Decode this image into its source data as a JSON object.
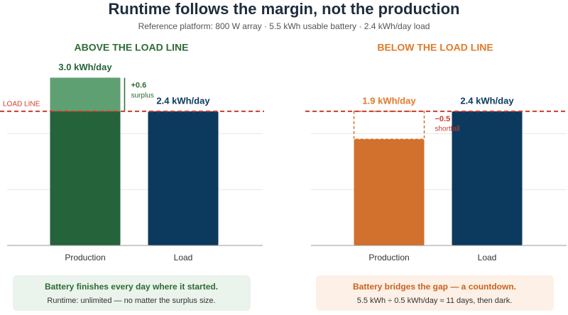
{
  "title": "Runtime follows the margin, not the production",
  "subtitle": "Reference platform: 800 W array · 5.5 kWh usable battery · 2.4 kWh/day load",
  "chart_data": [
    {
      "type": "bar",
      "title": "ABOVE THE LOAD LINE",
      "title_color": "#2e6b35",
      "categories": [
        "Production",
        "Load"
      ],
      "values": [
        3.0,
        2.4
      ],
      "value_labels": [
        "3.0 kWh/day",
        "2.4 kWh/day"
      ],
      "colors": [
        "#25633a",
        "#0c3a5e"
      ],
      "label_colors": [
        "#25633a",
        "#0c3a5e"
      ],
      "load_line": 2.4,
      "load_line_label": "LOAD LINE",
      "gap": {
        "value": 0.6,
        "label": "+0.6",
        "note": "surplus",
        "color": "#2e6b35",
        "fill": "#5fa072"
      },
      "ylim": [
        0,
        3.3
      ],
      "yticks": [
        1,
        2
      ],
      "grid": true,
      "summary": {
        "title": "Battery finishes every day where it started.",
        "text": "Runtime: unlimited — no matter the surplus size.",
        "background": "#eaf3ec",
        "color": "#2e6b35"
      }
    },
    {
      "type": "bar",
      "title": "BELOW THE LOAD LINE",
      "title_color": "#e07a2a",
      "categories": [
        "Production",
        "Load"
      ],
      "values": [
        1.9,
        2.4
      ],
      "value_labels": [
        "1.9 kWh/day",
        "2.4 kWh/day"
      ],
      "colors": [
        "#d2702d",
        "#0c3a5e"
      ],
      "label_colors": [
        "#e07a2a",
        "#0c3a5e"
      ],
      "load_line": 2.4,
      "gap": {
        "value": -0.5,
        "label": "−0.5",
        "note": "shortfall",
        "color": "#d03a2a",
        "fill": "none"
      },
      "ylim": [
        0,
        3.3
      ],
      "yticks": [
        1,
        2
      ],
      "grid": true,
      "summary": {
        "title": "Battery bridges the gap — a countdown.",
        "text": "5.5 kWh ÷ 0.5 kWh/day ≈ 11 days, then dark.",
        "background": "#fdf0e6",
        "color": "#c9621e"
      }
    }
  ]
}
